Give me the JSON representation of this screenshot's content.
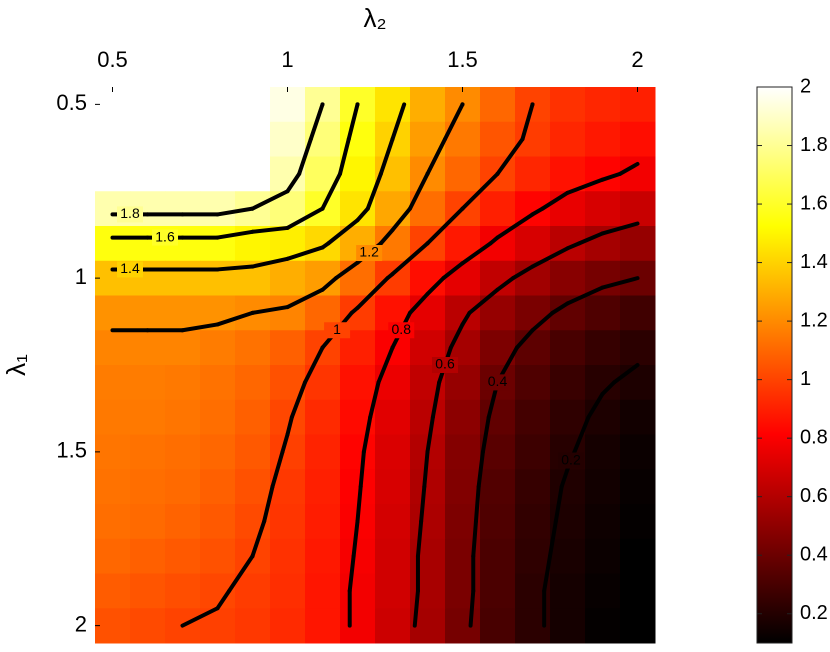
{
  "chart_data": {
    "type": "heatmap",
    "xlabel": "λ₂",
    "ylabel": "λ₁",
    "x": [
      0.5,
      0.6,
      0.7,
      0.8,
      0.9,
      1.0,
      1.1,
      1.2,
      1.3,
      1.4,
      1.5,
      1.6,
      1.7,
      1.8,
      1.9,
      2.0
    ],
    "y": [
      0.5,
      0.6,
      0.7,
      0.8,
      0.9,
      1.0,
      1.1,
      1.2,
      1.3,
      1.4,
      1.5,
      1.6,
      1.7,
      1.8,
      1.9,
      2.0
    ],
    "z": [
      [
        2,
        2,
        2,
        2,
        2,
        1.95,
        1.8,
        1.6,
        1.45,
        1.3,
        1.2,
        1.1,
        1.0,
        0.95,
        0.92,
        0.9
      ],
      [
        2,
        2,
        2,
        2,
        2,
        1.9,
        1.75,
        1.55,
        1.4,
        1.25,
        1.15,
        1.05,
        0.98,
        0.92,
        0.88,
        0.85
      ],
      [
        2,
        2,
        2,
        2,
        2,
        1.85,
        1.7,
        1.5,
        1.35,
        1.2,
        1.1,
        1.0,
        0.92,
        0.86,
        0.82,
        0.78
      ],
      [
        1.85,
        1.85,
        1.85,
        1.85,
        1.8,
        1.75,
        1.6,
        1.45,
        1.28,
        1.12,
        1.0,
        0.9,
        0.82,
        0.75,
        0.7,
        0.66
      ],
      [
        1.55,
        1.55,
        1.55,
        1.55,
        1.5,
        1.48,
        1.42,
        1.3,
        1.15,
        1.0,
        0.88,
        0.78,
        0.7,
        0.62,
        0.56,
        0.52
      ],
      [
        1.35,
        1.35,
        1.35,
        1.35,
        1.35,
        1.3,
        1.25,
        1.12,
        0.98,
        0.85,
        0.74,
        0.64,
        0.55,
        0.48,
        0.43,
        0.4
      ],
      [
        1.22,
        1.22,
        1.22,
        1.22,
        1.2,
        1.18,
        1.1,
        0.98,
        0.86,
        0.74,
        0.62,
        0.52,
        0.44,
        0.37,
        0.32,
        0.28
      ],
      [
        1.18,
        1.18,
        1.18,
        1.16,
        1.13,
        1.08,
        1.0,
        0.9,
        0.8,
        0.68,
        0.56,
        0.45,
        0.36,
        0.3,
        0.25,
        0.22
      ],
      [
        1.16,
        1.16,
        1.15,
        1.13,
        1.1,
        1.04,
        0.96,
        0.86,
        0.76,
        0.64,
        0.52,
        0.4,
        0.32,
        0.26,
        0.21,
        0.18
      ],
      [
        1.15,
        1.15,
        1.14,
        1.12,
        1.08,
        1.01,
        0.93,
        0.84,
        0.73,
        0.62,
        0.49,
        0.37,
        0.29,
        0.23,
        0.18,
        0.15
      ],
      [
        1.14,
        1.13,
        1.12,
        1.1,
        1.06,
        0.99,
        0.91,
        0.82,
        0.71,
        0.6,
        0.47,
        0.35,
        0.27,
        0.21,
        0.16,
        0.13
      ],
      [
        1.13,
        1.12,
        1.11,
        1.08,
        1.04,
        0.97,
        0.9,
        0.81,
        0.7,
        0.59,
        0.46,
        0.33,
        0.25,
        0.19,
        0.15,
        0.12
      ],
      [
        1.12,
        1.11,
        1.09,
        1.06,
        1.02,
        0.96,
        0.89,
        0.8,
        0.69,
        0.58,
        0.45,
        0.32,
        0.24,
        0.18,
        0.14,
        0.11
      ],
      [
        1.1,
        1.08,
        1.06,
        1.04,
        1.0,
        0.95,
        0.88,
        0.79,
        0.68,
        0.57,
        0.44,
        0.31,
        0.23,
        0.17,
        0.13,
        0.1
      ],
      [
        1.07,
        1.05,
        1.03,
        1.01,
        0.98,
        0.94,
        0.87,
        0.78,
        0.68,
        0.57,
        0.44,
        0.31,
        0.22,
        0.16,
        0.12,
        0.09
      ],
      [
        1.04,
        1.02,
        1.0,
        0.99,
        0.97,
        0.93,
        0.87,
        0.78,
        0.67,
        0.56,
        0.43,
        0.3,
        0.22,
        0.16,
        0.11,
        0.08
      ]
    ],
    "xlim": [
      0.45,
      2.05
    ],
    "ylim": [
      0.45,
      2.05
    ],
    "y_reversed": true,
    "xaxis_location": "top",
    "xticks": [
      0.5,
      1,
      1.5,
      2
    ],
    "yticks": [
      0.5,
      1,
      1.5,
      2
    ],
    "colormap": "hot",
    "clim": [
      0.1,
      2
    ],
    "colorbar_ticks": [
      0.2,
      0.4,
      0.6,
      0.8,
      1,
      1.2,
      1.4,
      1.6,
      1.8,
      2
    ],
    "contour_levels": [
      0.2,
      0.4,
      0.6,
      0.8,
      1,
      1.2,
      1.4,
      1.6,
      1.8
    ]
  }
}
